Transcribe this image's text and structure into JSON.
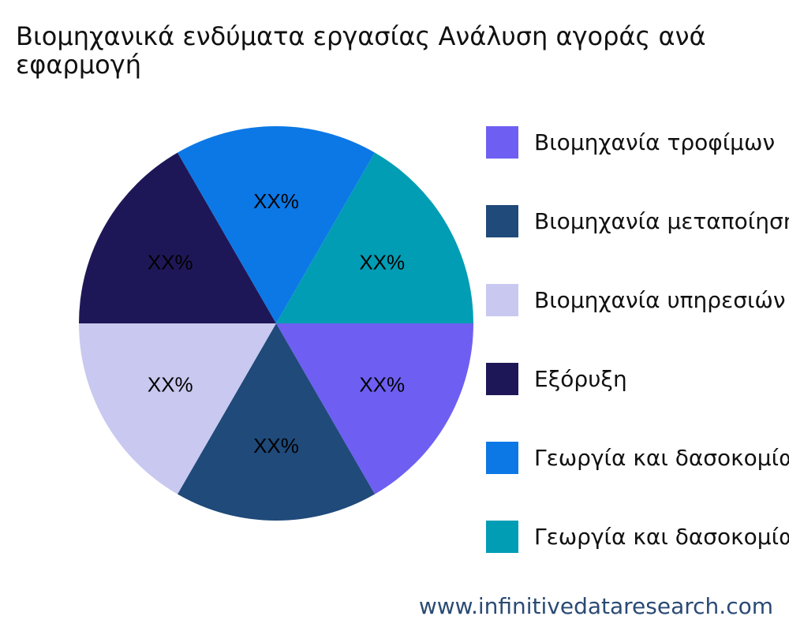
{
  "chart_data": {
    "type": "pie",
    "title": "Βιομηχανικά ενδύματα εργασίας Ανάλυση αγοράς ανά εφαρμογή",
    "legend_position": "right",
    "slices": [
      {
        "name": "Βιομηχανία τροφίμων",
        "value": 1,
        "label": "XX%",
        "color": "#6e5ff2"
      },
      {
        "name": "Βιομηχανία μεταποίησης",
        "value": 1,
        "label": "XX%",
        "color": "#1f4a7a"
      },
      {
        "name": "Βιομηχανία υπηρεσιών",
        "value": 1,
        "label": "XX%",
        "color": "#c8c8f0"
      },
      {
        "name": "Εξόρυξη",
        "value": 1,
        "label": "XX%",
        "color": "#1e1757"
      },
      {
        "name": "Γεωργία και δασοκομία",
        "value": 1,
        "label": "XX%",
        "color": "#0c78e6"
      },
      {
        "name": "Γεωργία και δασοκομία",
        "value": 1,
        "label": "XX%",
        "color": "#009db4"
      }
    ]
  },
  "source": "www.infinitivedataresearch.com"
}
